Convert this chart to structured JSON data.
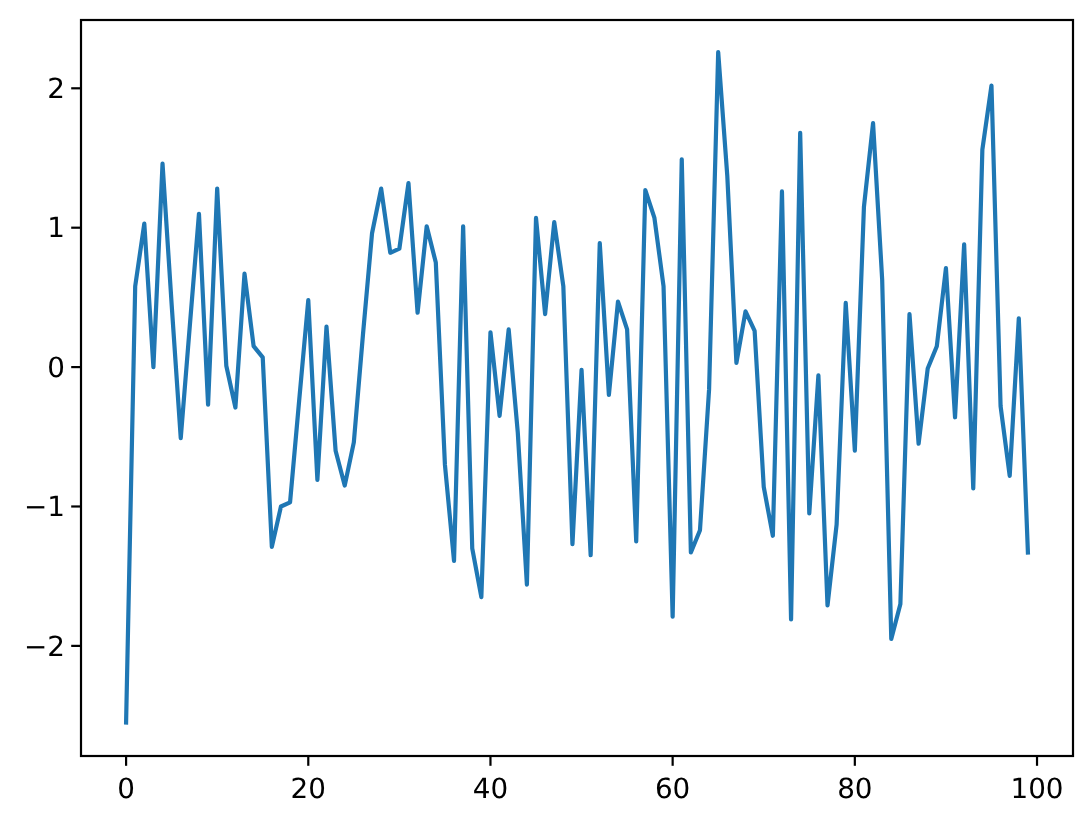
{
  "chart_data": {
    "type": "line",
    "x": [
      0,
      1,
      2,
      3,
      4,
      5,
      6,
      7,
      8,
      9,
      10,
      11,
      12,
      13,
      14,
      15,
      16,
      17,
      18,
      19,
      20,
      21,
      22,
      23,
      24,
      25,
      26,
      27,
      28,
      29,
      30,
      31,
      32,
      33,
      34,
      35,
      36,
      37,
      38,
      39,
      40,
      41,
      42,
      43,
      44,
      45,
      46,
      47,
      48,
      49,
      50,
      51,
      52,
      53,
      54,
      55,
      56,
      57,
      58,
      59,
      60,
      61,
      62,
      63,
      64,
      65,
      66,
      67,
      68,
      69,
      70,
      71,
      72,
      73,
      74,
      75,
      76,
      77,
      78,
      79,
      80,
      81,
      82,
      83,
      84,
      85,
      86,
      87,
      88,
      89,
      90,
      91,
      92,
      93,
      94,
      95,
      96,
      97,
      98,
      99
    ],
    "series": [
      {
        "color": "#1f77b4",
        "values": [
          -2.55,
          0.58,
          1.03,
          0.0,
          1.46,
          0.45,
          -0.51,
          0.3,
          1.1,
          -0.27,
          1.28,
          0.01,
          -0.29,
          0.67,
          0.15,
          0.07,
          -1.29,
          -1.0,
          -0.97,
          -0.24,
          0.48,
          -0.81,
          0.29,
          -0.6,
          -0.85,
          -0.54,
          0.23,
          0.96,
          1.28,
          0.82,
          0.85,
          1.32,
          0.39,
          1.01,
          0.75,
          -0.7,
          -1.39,
          1.01,
          -1.3,
          -1.65,
          0.25,
          -0.35,
          0.27,
          -0.47,
          -1.56,
          1.07,
          0.38,
          1.04,
          0.58,
          -1.27,
          -0.02,
          -1.35,
          0.89,
          -0.2,
          0.47,
          0.27,
          -1.25,
          1.27,
          1.07,
          0.58,
          -1.79,
          1.49,
          -1.33,
          -1.17,
          -0.16,
          2.26,
          1.37,
          0.03,
          0.4,
          0.26,
          -0.86,
          -1.21,
          1.26,
          -1.81,
          1.68,
          -1.05,
          -0.06,
          -1.71,
          -1.13,
          0.46,
          -0.6,
          1.15,
          1.75,
          0.63,
          -1.95,
          -1.7,
          0.38,
          -0.55,
          -0.01,
          0.15,
          0.71,
          -0.36,
          0.88,
          -0.87,
          1.56,
          2.02,
          -0.28,
          -0.78,
          0.35,
          -1.33
        ]
      }
    ],
    "xlim": [
      -4.95,
      103.95
    ],
    "ylim": [
      -2.79,
      2.49
    ],
    "xticks": [
      0,
      20,
      40,
      60,
      80,
      100
    ],
    "yticks": [
      -2,
      -1,
      0,
      1,
      2
    ],
    "grid": false
  }
}
